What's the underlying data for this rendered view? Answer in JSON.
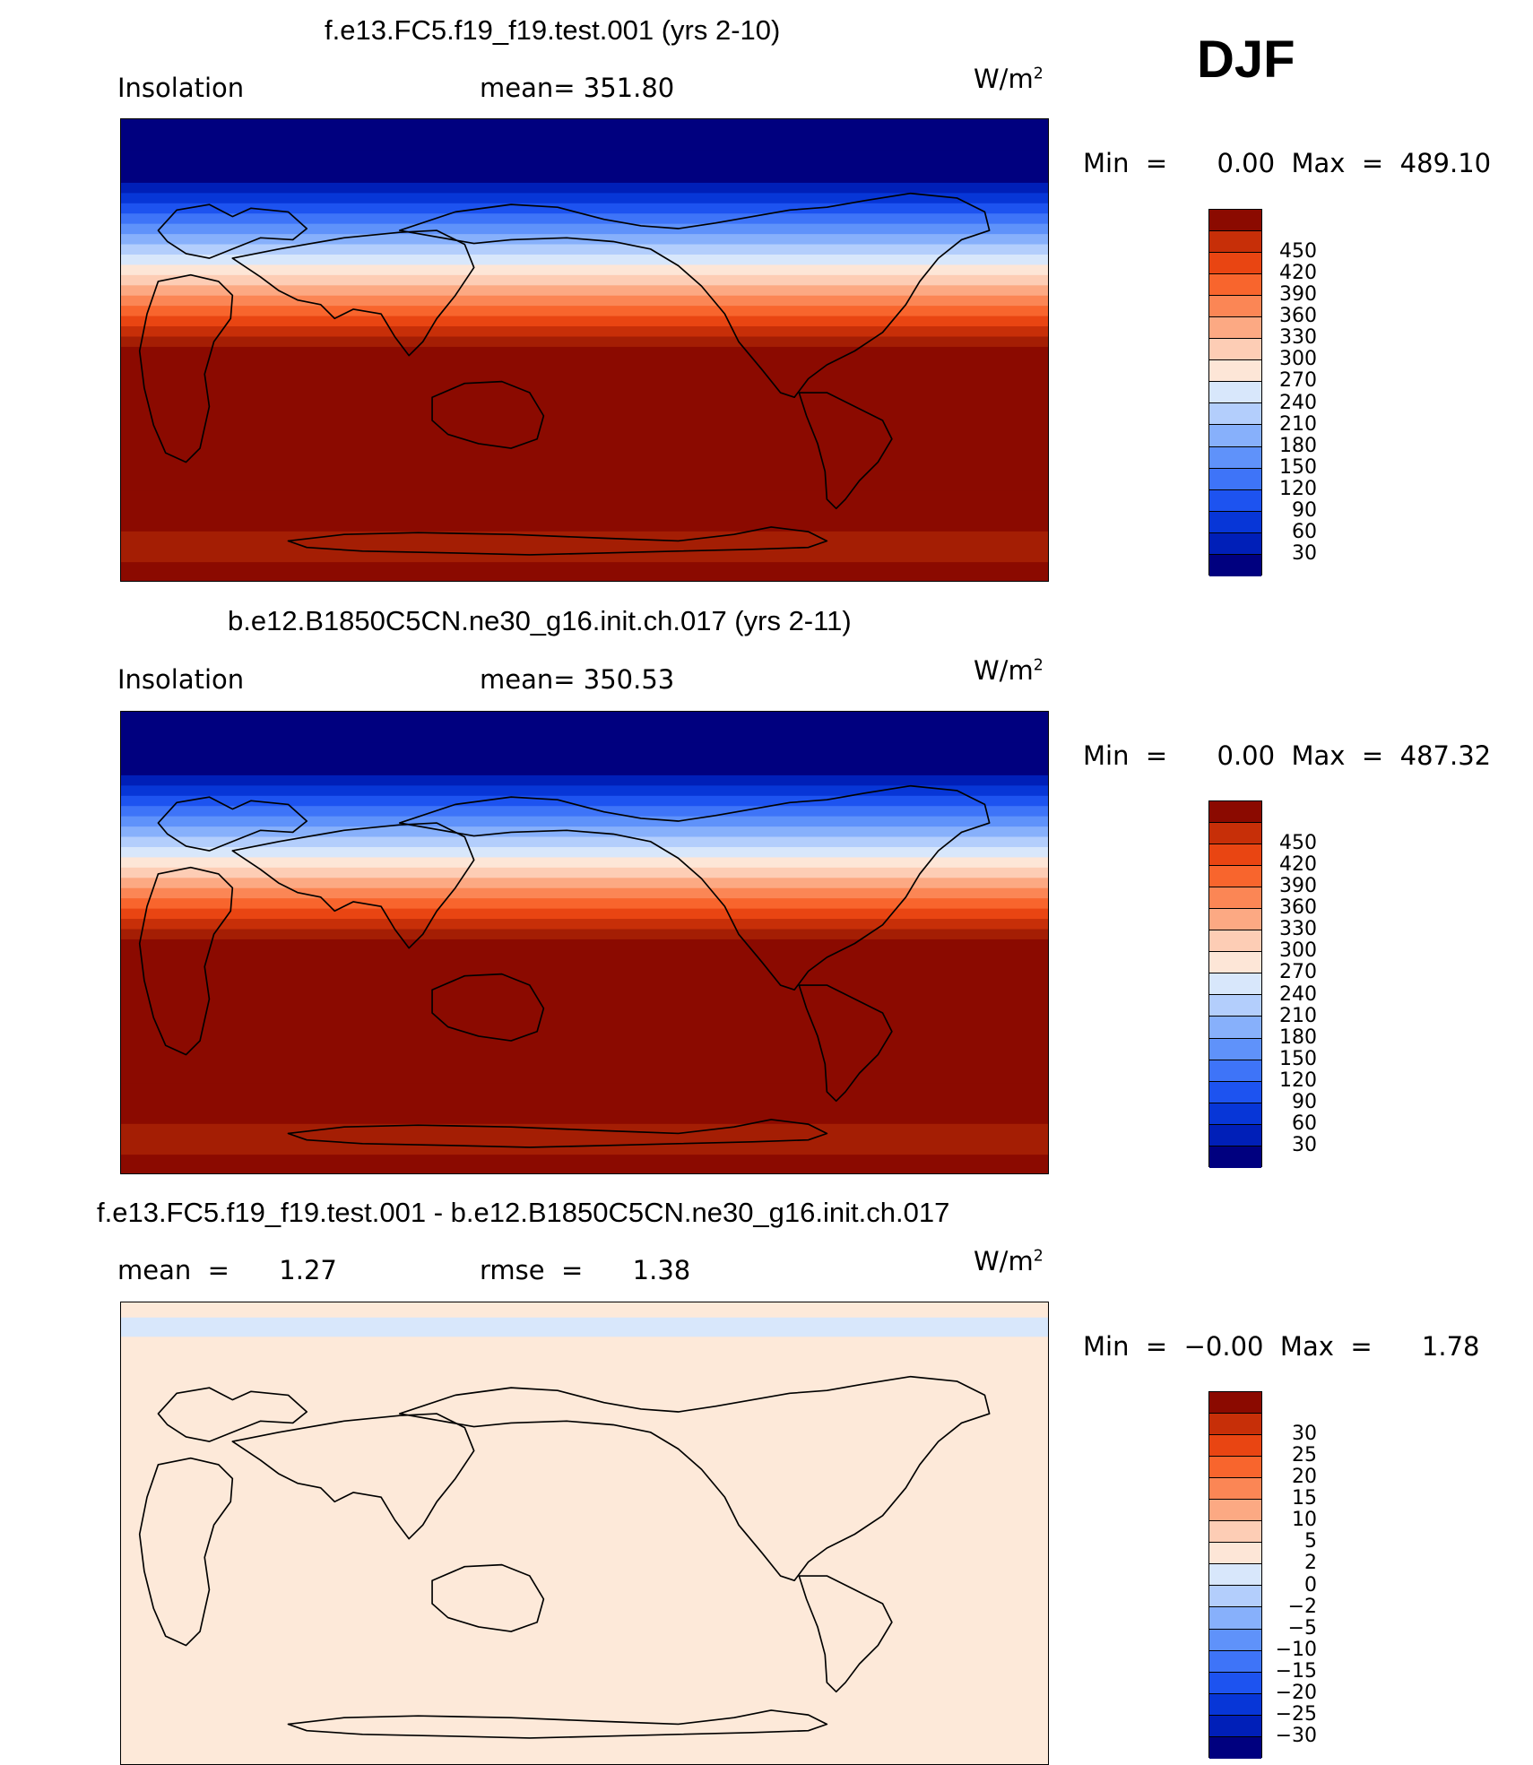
{
  "season": "DJF",
  "panels": [
    {
      "title": "f.e13.FC5.f19_f19.test.001 (yrs 2-10)",
      "left_label": "Insolation",
      "mid_label": "mean=  351.80",
      "units": "W/m",
      "units_sup": "2",
      "minmax": "Min  =      0.00  Max  =  489.10",
      "band_colors": [
        "#00007f",
        "#00007f",
        "#00007f",
        "#001fb8",
        "#0736d7",
        "#1d53f0",
        "#3e74f8",
        "#5f92fa",
        "#87b0fb",
        "#b3cefc",
        "#d8e7fb",
        "#fde6d7",
        "#fdcdb5",
        "#fca983",
        "#fb8655",
        "#f8652d",
        "#e94512",
        "#c72f08",
        "#a41e04",
        "#8b0a00",
        "#8b0a00",
        "#8b0a00",
        "#8b0a00",
        "#a41e04",
        "#8b0a00"
      ],
      "band_weights": [
        1.5,
        1.1,
        0.5,
        0.5,
        0.5,
        0.5,
        0.5,
        0.5,
        0.5,
        0.5,
        0.5,
        0.5,
        0.5,
        0.5,
        0.5,
        0.5,
        0.5,
        0.5,
        0.5,
        3.5,
        3.5,
        2.0,
        0.0,
        1.5,
        1.0
      ]
    },
    {
      "title": "b.e12.B1850C5CN.ne30_g16.init.ch.017 (yrs 2-11)",
      "left_label": "Insolation",
      "mid_label": "mean=  350.53",
      "units": "W/m",
      "units_sup": "2",
      "minmax": "Min  =      0.00  Max  =  487.32",
      "band_colors": [
        "#00007f",
        "#00007f",
        "#00007f",
        "#001fb8",
        "#0736d7",
        "#1d53f0",
        "#3e74f8",
        "#5f92fa",
        "#87b0fb",
        "#b3cefc",
        "#d8e7fb",
        "#fde6d7",
        "#fdcdb5",
        "#fca983",
        "#fb8655",
        "#f8652d",
        "#e94512",
        "#c72f08",
        "#a41e04",
        "#8b0a00",
        "#8b0a00",
        "#8b0a00",
        "#8b0a00",
        "#a41e04",
        "#8b0a00"
      ],
      "band_weights": [
        1.5,
        1.1,
        0.5,
        0.5,
        0.5,
        0.5,
        0.5,
        0.5,
        0.5,
        0.5,
        0.5,
        0.5,
        0.5,
        0.5,
        0.5,
        0.5,
        0.5,
        0.5,
        0.5,
        3.5,
        3.5,
        2.0,
        0.0,
        1.5,
        1.0
      ]
    },
    {
      "title": "f.e13.FC5.f19_f19.test.001 - b.e12.B1850C5CN.ne30_g16.init.ch.017",
      "left_label": "mean  =      1.27",
      "mid_label": "rmse  =      1.38",
      "units": "W/m",
      "units_sup": "2",
      "minmax": "Min  =  −0.00  Max  =      1.78",
      "band_colors": [
        "#fde9d9",
        "#d8e7fb",
        "#fde9d9"
      ],
      "band_weights": [
        0.35,
        0.45,
        10.0
      ]
    }
  ],
  "colorbars": [
    {
      "colors": [
        "#00007f",
        "#001fb8",
        "#0736d7",
        "#1d53f0",
        "#3e74f8",
        "#5f92fa",
        "#87b0fb",
        "#b3cefc",
        "#d8e7fb",
        "#fde6d7",
        "#fdcdb5",
        "#fca983",
        "#fb8655",
        "#f8652d",
        "#e94512",
        "#c72f08",
        "#8b0a00"
      ],
      "ticks": [
        "30",
        "60",
        "90",
        "120",
        "150",
        "180",
        "210",
        "240",
        "270",
        "300",
        "330",
        "360",
        "390",
        "420",
        "450"
      ]
    },
    {
      "colors": [
        "#00007f",
        "#001fb8",
        "#0736d7",
        "#1d53f0",
        "#3e74f8",
        "#5f92fa",
        "#87b0fb",
        "#b3cefc",
        "#d8e7fb",
        "#fde6d7",
        "#fdcdb5",
        "#fca983",
        "#fb8655",
        "#f8652d",
        "#e94512",
        "#c72f08",
        "#8b0a00"
      ],
      "ticks": [
        "30",
        "60",
        "90",
        "120",
        "150",
        "180",
        "210",
        "240",
        "270",
        "300",
        "330",
        "360",
        "390",
        "420",
        "450"
      ]
    },
    {
      "colors": [
        "#00007f",
        "#001fb8",
        "#0736d7",
        "#1d53f0",
        "#3e74f8",
        "#5f92fa",
        "#87b0fb",
        "#b3cefc",
        "#d8e7fb",
        "#fde6d7",
        "#fdcdb5",
        "#fca983",
        "#fb8655",
        "#f8652d",
        "#e94512",
        "#c72f08",
        "#8b0a00"
      ],
      "ticks": [
        "−30",
        "−25",
        "−20",
        "−15",
        "−10",
        "−5",
        "−2",
        "0",
        "2",
        "5",
        "10",
        "15",
        "20",
        "25",
        "30"
      ]
    }
  ],
  "chart_data": [
    {
      "type": "heatmap",
      "title": "f.e13.FC5.f19_f19.test.001 (yrs 2-10)",
      "variable": "Insolation",
      "units": "W/m2",
      "mean": 351.8,
      "min": 0.0,
      "max": 489.1,
      "levels": [
        30,
        60,
        90,
        120,
        150,
        180,
        210,
        240,
        270,
        300,
        330,
        360,
        390,
        420,
        450
      ]
    },
    {
      "type": "heatmap",
      "title": "b.e12.B1850C5CN.ne30_g16.init.ch.017 (yrs 2-11)",
      "variable": "Insolation",
      "units": "W/m2",
      "mean": 350.53,
      "min": 0.0,
      "max": 487.32,
      "levels": [
        30,
        60,
        90,
        120,
        150,
        180,
        210,
        240,
        270,
        300,
        330,
        360,
        390,
        420,
        450
      ]
    },
    {
      "type": "heatmap",
      "title": "f.e13.FC5.f19_f19.test.001 - b.e12.B1850C5CN.ne30_g16.init.ch.017",
      "units": "W/m2",
      "mean": 1.27,
      "rmse": 1.38,
      "min": -0.0,
      "max": 1.78,
      "levels": [
        -30,
        -25,
        -20,
        -15,
        -10,
        -5,
        -2,
        0,
        2,
        5,
        10,
        15,
        20,
        25,
        30
      ]
    }
  ]
}
